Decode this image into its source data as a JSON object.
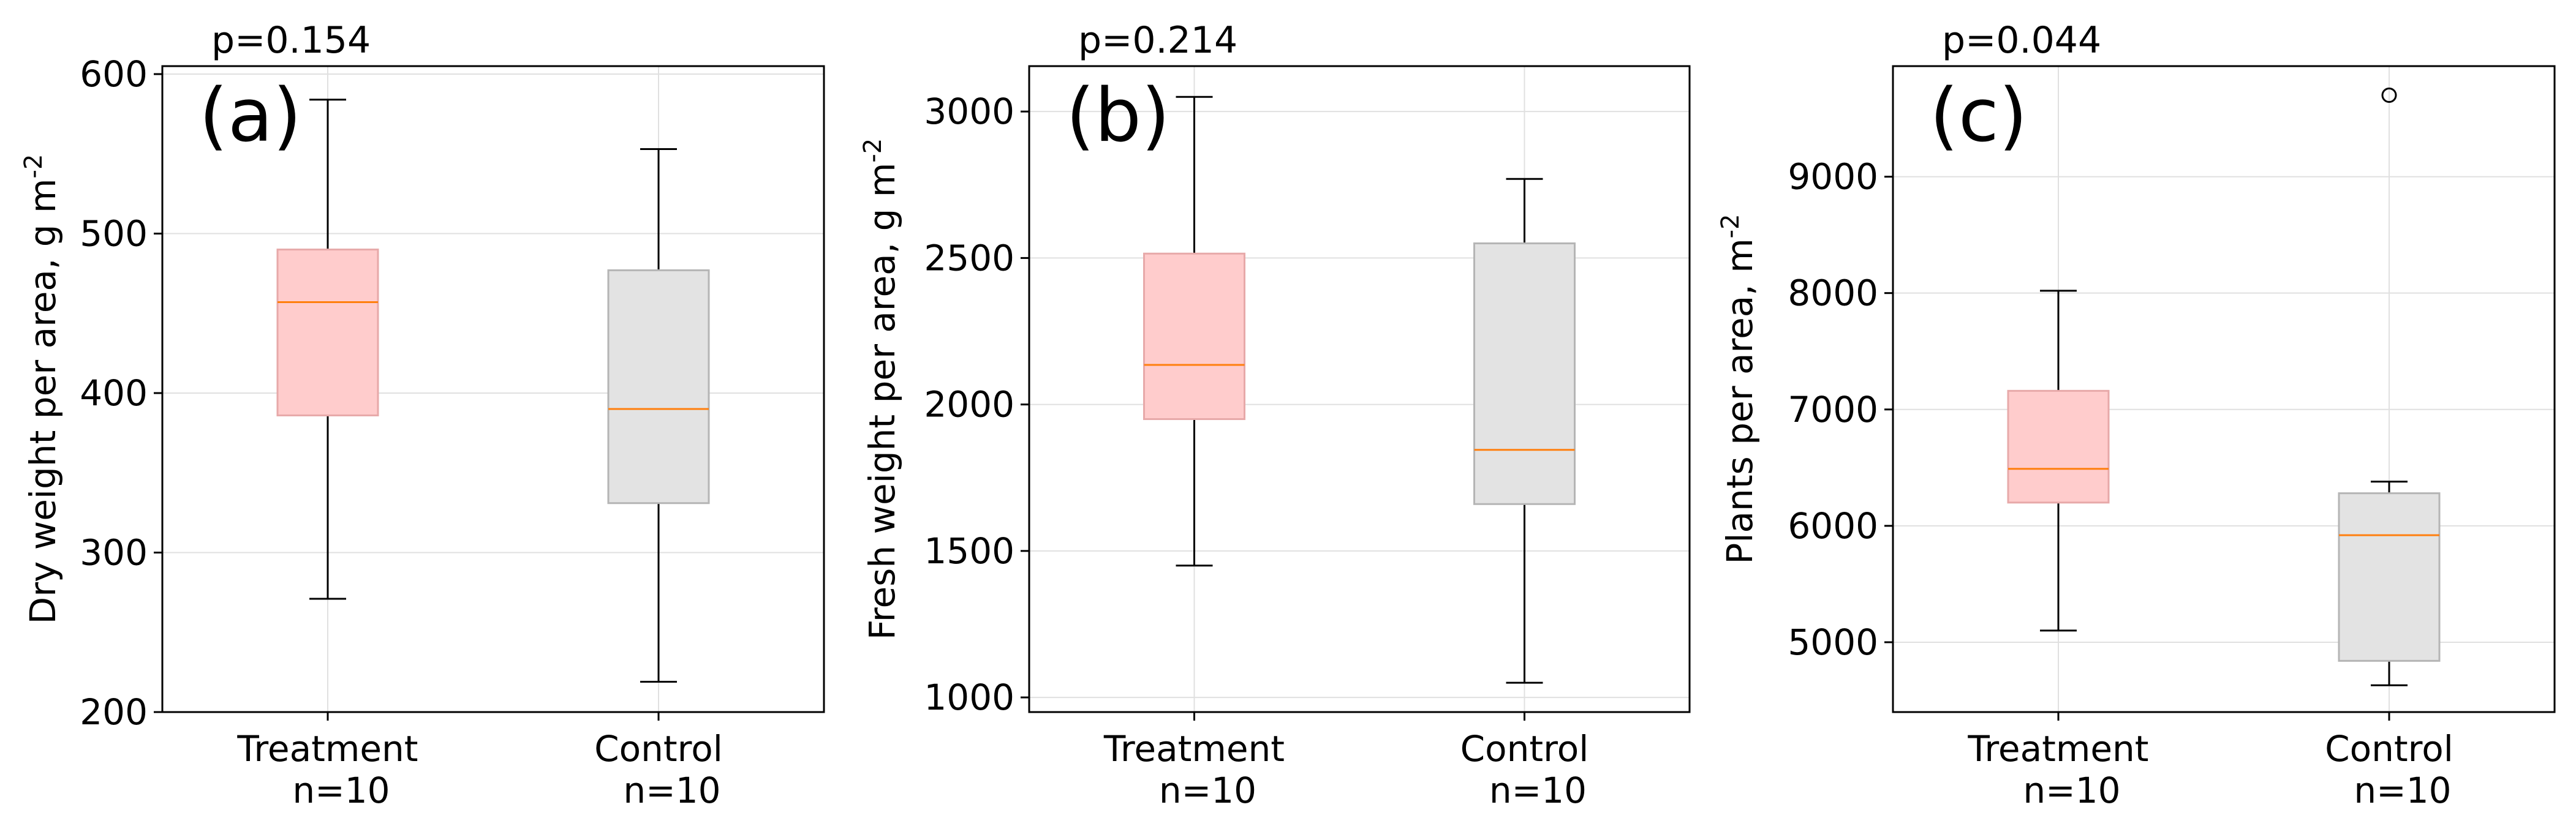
{
  "chart_data": [
    {
      "type": "box",
      "panel_label": "(a)",
      "annotation": "p=0.154",
      "ylabel": "Dry weight per area,  g m",
      "ylabel_sup": "-2",
      "ylim": [
        200,
        605
      ],
      "yticks": [
        200,
        300,
        400,
        500,
        600
      ],
      "grid": true,
      "categories": [
        {
          "name": "Treatment",
          "n_label": "n=10",
          "color": "#ffcccc",
          "edge": "#e7a9a9",
          "whisker_low": 271,
          "q1": 386,
          "median": 457,
          "q3": 490,
          "whisker_high": 584,
          "outliers": []
        },
        {
          "name": "Control",
          "n_label": "n=10",
          "color": "#e3e3e3",
          "edge": "#b5b5b5",
          "whisker_low": 219,
          "q1": 331,
          "median": 390,
          "q3": 477,
          "whisker_high": 553,
          "outliers": []
        }
      ]
    },
    {
      "type": "box",
      "panel_label": "(b)",
      "annotation": "p=0.214",
      "ylabel": "Fresh weight per area,  g m",
      "ylabel_sup": "-2",
      "ylim": [
        950,
        3155
      ],
      "yticks": [
        1000,
        1500,
        2000,
        2500,
        3000
      ],
      "grid": true,
      "categories": [
        {
          "name": "Treatment",
          "n_label": "n=10",
          "color": "#ffcccc",
          "edge": "#e7a9a9",
          "whisker_low": 1450,
          "q1": 1950,
          "median": 2135,
          "q3": 2515,
          "whisker_high": 3050,
          "outliers": []
        },
        {
          "name": "Control",
          "n_label": "n=10",
          "color": "#e3e3e3",
          "edge": "#b5b5b5",
          "whisker_low": 1050,
          "q1": 1660,
          "median": 1845,
          "q3": 2550,
          "whisker_high": 2770,
          "outliers": []
        }
      ]
    },
    {
      "type": "box",
      "panel_label": "(c)",
      "annotation": "p=0.044",
      "ylabel": "Plants per area,  m",
      "ylabel_sup": "-2",
      "ylim": [
        4400,
        9950
      ],
      "yticks": [
        5000,
        6000,
        7000,
        8000,
        9000
      ],
      "grid": true,
      "categories": [
        {
          "name": "Treatment",
          "n_label": "n=10",
          "color": "#ffcccc",
          "edge": "#e7a9a9",
          "whisker_low": 5100,
          "q1": 6200,
          "median": 6490,
          "q3": 7160,
          "whisker_high": 8020,
          "outliers": []
        },
        {
          "name": "Control",
          "n_label": "n=10",
          "color": "#e3e3e3",
          "edge": "#b5b5b5",
          "whisker_low": 4630,
          "q1": 4840,
          "median": 5920,
          "q3": 6280,
          "whisker_high": 6380,
          "outliers": [
            9700
          ]
        }
      ]
    }
  ],
  "style": {
    "median_color": "#ff7f0e",
    "whisker_color": "#000000",
    "grid_color": "#e0e0e0",
    "axis_color": "#000000"
  }
}
